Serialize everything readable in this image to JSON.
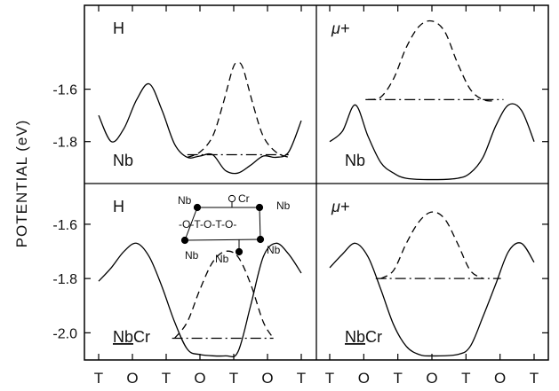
{
  "chart_data": {
    "type": "line",
    "ylabel": "POTENTIAL (eV)",
    "x_tick_labels": [
      "T",
      "O",
      "T",
      "O",
      "T",
      "O",
      "T"
    ],
    "panels": [
      {
        "id": "top-left",
        "particle_label": "H",
        "material_label": "Nb",
        "material_underlined": false,
        "yticks": [
          "-1.6",
          "-1.8"
        ],
        "ylim": [
          -1.96,
          -1.28
        ],
        "series": [
          {
            "style": "solid",
            "points": [
              [
                0.0,
                -1.7
              ],
              [
                0.25,
                -1.8
              ],
              [
                0.5,
                -1.75
              ],
              [
                0.75,
                -1.64
              ],
              [
                1.0,
                -1.58
              ],
              [
                1.25,
                -1.68
              ],
              [
                1.5,
                -1.81
              ],
              [
                1.75,
                -1.86
              ],
              [
                2.0,
                -1.855
              ],
              [
                2.25,
                -1.85
              ],
              [
                2.5,
                -1.91
              ],
              [
                2.75,
                -1.92
              ],
              [
                3.0,
                -1.89
              ],
              [
                3.25,
                -1.855
              ],
              [
                3.5,
                -1.86
              ],
              [
                3.75,
                -1.84
              ],
              [
                4.0,
                -1.72
              ]
            ]
          },
          {
            "style": "dashed",
            "points": [
              [
                1.75,
                -1.86
              ],
              [
                2.0,
                -1.84
              ],
              [
                2.25,
                -1.78
              ],
              [
                2.45,
                -1.66
              ],
              [
                2.65,
                -1.52
              ],
              [
                2.75,
                -1.5
              ],
              [
                2.85,
                -1.52
              ],
              [
                3.05,
                -1.66
              ],
              [
                3.25,
                -1.78
              ],
              [
                3.5,
                -1.84
              ],
              [
                3.75,
                -1.86
              ]
            ]
          },
          {
            "style": "dash-dot",
            "points": [
              [
                1.75,
                -1.85
              ],
              [
                3.75,
                -1.85
              ]
            ]
          }
        ]
      },
      {
        "id": "top-right",
        "particle_label": "μ+",
        "material_label": "Nb",
        "material_underlined": false,
        "yticks": [],
        "ylim": [
          -1.96,
          -1.28
        ],
        "series": [
          {
            "style": "solid",
            "points": [
              [
                0.0,
                -1.8
              ],
              [
                0.25,
                -1.76
              ],
              [
                0.5,
                -1.66
              ],
              [
                0.75,
                -1.78
              ],
              [
                1.0,
                -1.88
              ],
              [
                1.25,
                -1.92
              ],
              [
                1.5,
                -1.94
              ],
              [
                2.0,
                -1.945
              ],
              [
                2.5,
                -1.94
              ],
              [
                2.75,
                -1.92
              ],
              [
                3.0,
                -1.86
              ],
              [
                3.25,
                -1.74
              ],
              [
                3.5,
                -1.66
              ],
              [
                3.75,
                -1.68
              ],
              [
                4.0,
                -1.8
              ]
            ]
          },
          {
            "style": "dashed",
            "points": [
              [
                0.75,
                -1.64
              ],
              [
                1.0,
                -1.63
              ],
              [
                1.25,
                -1.56
              ],
              [
                1.5,
                -1.44
              ],
              [
                1.75,
                -1.36
              ],
              [
                2.0,
                -1.34
              ],
              [
                2.25,
                -1.38
              ],
              [
                2.5,
                -1.5
              ],
              [
                2.75,
                -1.6
              ],
              [
                3.0,
                -1.64
              ],
              [
                3.25,
                -1.645
              ]
            ]
          },
          {
            "style": "dash-dot",
            "points": [
              [
                0.7,
                -1.64
              ],
              [
                3.4,
                -1.64
              ]
            ]
          }
        ]
      },
      {
        "id": "bottom-left",
        "particle_label": "H",
        "material_label": "NbCr",
        "material_underlined": true,
        "yticks": [
          "-1.6",
          "-1.8",
          "-2.0"
        ],
        "ylim": [
          -2.1,
          -1.45
        ],
        "series": [
          {
            "style": "solid",
            "points": [
              [
                0.0,
                -1.81
              ],
              [
                0.25,
                -1.76
              ],
              [
                0.5,
                -1.7
              ],
              [
                0.75,
                -1.67
              ],
              [
                1.0,
                -1.72
              ],
              [
                1.25,
                -1.83
              ],
              [
                1.5,
                -1.96
              ],
              [
                1.75,
                -2.06
              ],
              [
                2.0,
                -2.08
              ],
              [
                2.5,
                -2.085
              ],
              [
                2.75,
                -2.07
              ],
              [
                3.0,
                -1.9
              ],
              [
                3.25,
                -1.72
              ],
              [
                3.5,
                -1.67
              ],
              [
                3.75,
                -1.71
              ],
              [
                4.0,
                -1.78
              ]
            ]
          },
          {
            "style": "dashed",
            "points": [
              [
                1.5,
                -2.02
              ],
              [
                1.75,
                -1.96
              ],
              [
                2.0,
                -1.84
              ],
              [
                2.25,
                -1.74
              ],
              [
                2.5,
                -1.7
              ],
              [
                2.75,
                -1.72
              ],
              [
                3.0,
                -1.82
              ],
              [
                3.25,
                -1.96
              ],
              [
                3.45,
                -2.02
              ]
            ]
          },
          {
            "style": "dash-dot",
            "points": [
              [
                1.45,
                -2.02
              ],
              [
                3.45,
                -2.02
              ]
            ]
          }
        ]
      },
      {
        "id": "bottom-right",
        "particle_label": "μ+",
        "material_label": "NbCr",
        "material_underlined": true,
        "yticks": [],
        "ylim": [
          -2.1,
          -1.45
        ],
        "series": [
          {
            "style": "solid",
            "points": [
              [
                0.0,
                -1.76
              ],
              [
                0.25,
                -1.71
              ],
              [
                0.5,
                -1.67
              ],
              [
                0.75,
                -1.72
              ],
              [
                1.0,
                -1.84
              ],
              [
                1.25,
                -1.97
              ],
              [
                1.5,
                -2.05
              ],
              [
                1.75,
                -2.08
              ],
              [
                2.0,
                -2.085
              ],
              [
                2.5,
                -2.08
              ],
              [
                2.75,
                -2.05
              ],
              [
                3.0,
                -1.94
              ],
              [
                3.25,
                -1.82
              ],
              [
                3.5,
                -1.7
              ],
              [
                3.75,
                -1.67
              ],
              [
                4.0,
                -1.74
              ]
            ]
          },
          {
            "style": "dashed",
            "points": [
              [
                1.0,
                -1.8
              ],
              [
                1.25,
                -1.77
              ],
              [
                1.5,
                -1.67
              ],
              [
                1.75,
                -1.59
              ],
              [
                2.0,
                -1.555
              ],
              [
                2.25,
                -1.58
              ],
              [
                2.5,
                -1.67
              ],
              [
                2.75,
                -1.77
              ],
              [
                3.0,
                -1.8
              ]
            ]
          },
          {
            "style": "dash-dot",
            "points": [
              [
                0.9,
                -1.8
              ],
              [
                3.35,
                -1.8
              ]
            ]
          }
        ]
      }
    ],
    "inset": {
      "panel": "bottom-left",
      "labels": [
        "Nb",
        "Cr",
        "Nb",
        "Nb",
        "Nb",
        "Nb"
      ],
      "chain": "-O-T-O-T-O-"
    }
  }
}
